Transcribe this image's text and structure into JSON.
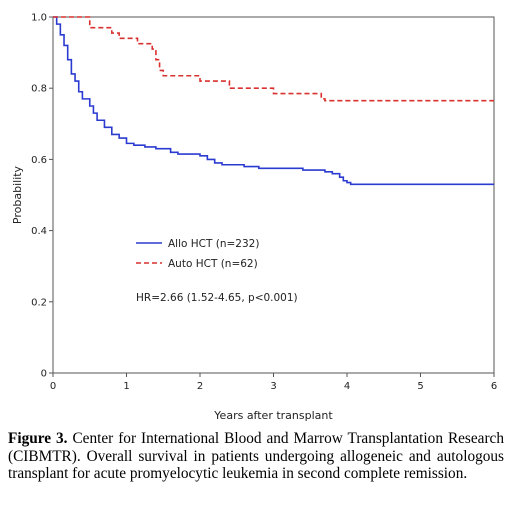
{
  "chart_data": {
    "type": "line",
    "title": "",
    "xlabel": "Years after transplant",
    "ylabel": "Probability",
    "xlim": [
      0,
      6
    ],
    "ylim": [
      0,
      1.0
    ],
    "xticks": [
      0,
      1,
      2,
      3,
      4,
      5,
      6
    ],
    "yticks": [
      0,
      0.2,
      0.4,
      0.6,
      0.8,
      1.0
    ],
    "ytick_labels": [
      "0",
      "0.2",
      "0.4",
      "0.6",
      "0.8",
      "1.0"
    ],
    "grid": false,
    "legend_position": "center-left",
    "series": [
      {
        "name": "Allo HCT (n=232)",
        "color": "#2b3bd1",
        "style": "solid",
        "step": true,
        "points": [
          [
            0,
            1.0
          ],
          [
            0.05,
            0.98
          ],
          [
            0.1,
            0.95
          ],
          [
            0.15,
            0.92
          ],
          [
            0.2,
            0.88
          ],
          [
            0.25,
            0.84
          ],
          [
            0.3,
            0.82
          ],
          [
            0.35,
            0.79
          ],
          [
            0.4,
            0.77
          ],
          [
            0.5,
            0.75
          ],
          [
            0.55,
            0.73
          ],
          [
            0.6,
            0.71
          ],
          [
            0.7,
            0.69
          ],
          [
            0.8,
            0.67
          ],
          [
            0.9,
            0.66
          ],
          [
            1.0,
            0.645
          ],
          [
            1.1,
            0.64
          ],
          [
            1.25,
            0.635
          ],
          [
            1.4,
            0.63
          ],
          [
            1.6,
            0.62
          ],
          [
            1.7,
            0.615
          ],
          [
            2.0,
            0.61
          ],
          [
            2.1,
            0.6
          ],
          [
            2.2,
            0.59
          ],
          [
            2.3,
            0.585
          ],
          [
            2.6,
            0.58
          ],
          [
            2.8,
            0.575
          ],
          [
            3.4,
            0.57
          ],
          [
            3.7,
            0.565
          ],
          [
            3.8,
            0.56
          ],
          [
            3.9,
            0.55
          ],
          [
            3.95,
            0.54
          ],
          [
            4.0,
            0.535
          ],
          [
            4.05,
            0.53
          ],
          [
            6.0,
            0.53
          ]
        ]
      },
      {
        "name": "Auto HCT (n=62)",
        "color": "#d9312f",
        "style": "dashed",
        "step": true,
        "points": [
          [
            0,
            1.0
          ],
          [
            0.5,
            0.97
          ],
          [
            0.8,
            0.955
          ],
          [
            0.9,
            0.94
          ],
          [
            1.15,
            0.925
          ],
          [
            1.35,
            0.91
          ],
          [
            1.4,
            0.88
          ],
          [
            1.45,
            0.85
          ],
          [
            1.5,
            0.835
          ],
          [
            2.0,
            0.82
          ],
          [
            2.4,
            0.8
          ],
          [
            3.0,
            0.785
          ],
          [
            3.65,
            0.77
          ],
          [
            3.7,
            0.765
          ],
          [
            6.0,
            0.765
          ]
        ]
      }
    ],
    "annotations": [
      "HR=2.66 (1.52-4.65, p<0.001)"
    ]
  },
  "legend": {
    "allo": "Allo HCT (n=232)",
    "auto": "Auto HCT (n=62)"
  },
  "annotation_text": "HR=2.66 (1.52-4.65, p<0.001)",
  "caption": {
    "label": "Figure 3.",
    "text": " Center for International Blood and Marrow Transplantation Research (CIBMTR). Overall survival in patients undergoing allogeneic and autologous transplant for acute promyelocytic leukemia in second complete remission."
  }
}
